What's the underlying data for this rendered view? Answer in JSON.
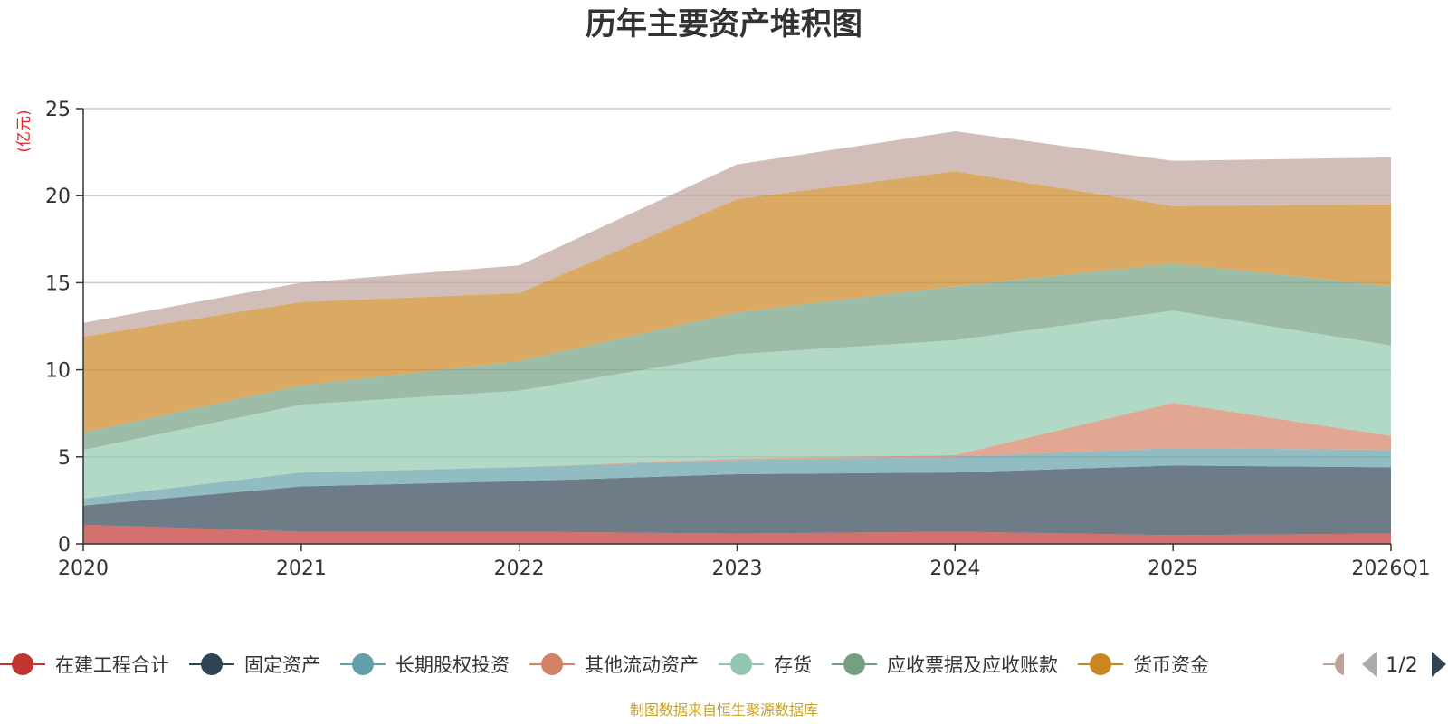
{
  "chart_data": {
    "type": "area",
    "stacked": true,
    "title": "历年主要资产堆积图",
    "ylabel": "(亿元)",
    "ylim": [
      0,
      25
    ],
    "yticks": [
      "0",
      "5",
      "10",
      "15",
      "20",
      "25"
    ],
    "categories": [
      "2020",
      "2021",
      "2022",
      "2023",
      "2024",
      "2025",
      "2026Q1"
    ],
    "series": [
      {
        "name": "在建工程合计",
        "color": "#c23531",
        "values": [
          1.1,
          0.7,
          0.7,
          0.6,
          0.7,
          0.5,
          0.6
        ]
      },
      {
        "name": "固定资产",
        "color": "#2f4554",
        "values": [
          1.1,
          2.6,
          2.9,
          3.4,
          3.4,
          4.0,
          3.8
        ]
      },
      {
        "name": "长期股权投资",
        "color": "#61a0a8",
        "values": [
          0.4,
          0.8,
          0.8,
          0.8,
          0.9,
          1.0,
          1.0
        ]
      },
      {
        "name": "其他流动资产",
        "color": "#d48265",
        "values": [
          0.0,
          0.0,
          0.0,
          0.1,
          0.1,
          2.6,
          0.8
        ]
      },
      {
        "name": "存货",
        "color": "#91c7ae",
        "values": [
          2.8,
          3.9,
          4.4,
          6.0,
          6.6,
          5.3,
          5.2
        ]
      },
      {
        "name": "应收票据及应收账款",
        "color": "#749f83",
        "values": [
          1.0,
          1.1,
          1.7,
          2.4,
          3.1,
          2.7,
          3.4
        ]
      },
      {
        "name": "货币资金",
        "color": "#ca8622",
        "values": [
          5.5,
          4.8,
          3.9,
          6.5,
          6.6,
          3.3,
          4.7
        ]
      },
      {
        "name": "",
        "color": "#bda29a",
        "values": [
          0.8,
          1.1,
          1.6,
          2.0,
          2.3,
          2.6,
          2.7
        ]
      }
    ]
  },
  "legend": {
    "visible_items": [
      "在建工程合计",
      "固定资产",
      "长期股权投资",
      "其他流动资产",
      "存货",
      "应收票据及应收账款",
      "货币资金"
    ],
    "page": "1/2"
  },
  "footer": {
    "source": "制图数据来自恒生聚源数据库"
  }
}
